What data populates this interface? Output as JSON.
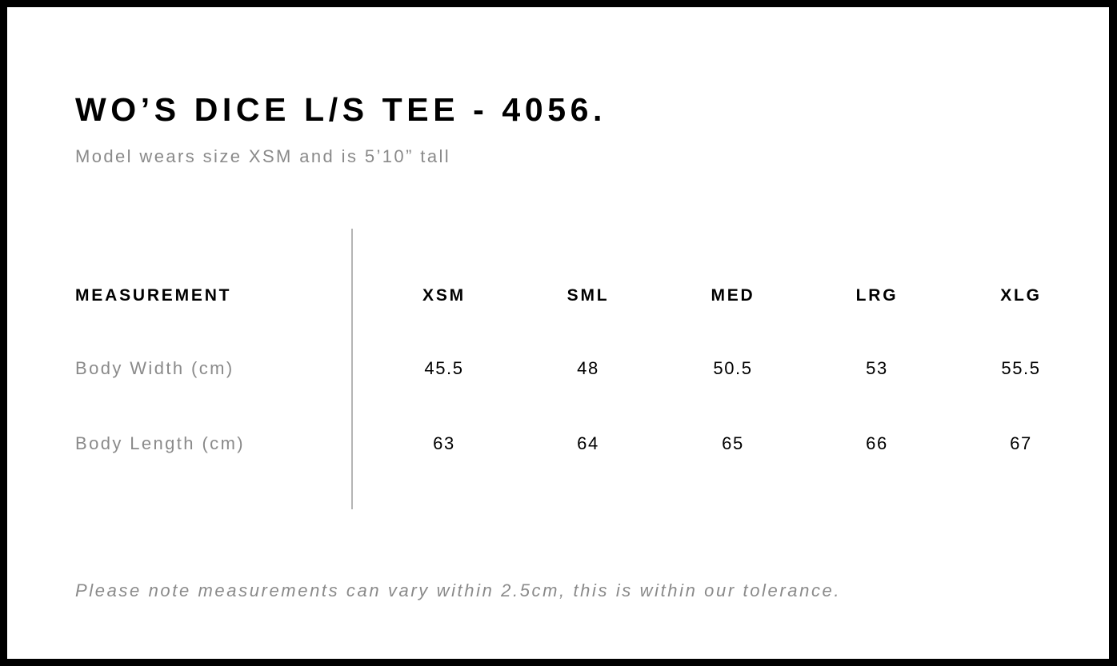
{
  "title": "WO’S DICE L/S TEE - 4056.",
  "subtitle": "Model wears size XSM and is 5’10” tall",
  "table": {
    "header": "MEASUREMENT",
    "sizes": [
      "XSM",
      "SML",
      "MED",
      "LRG",
      "XLG"
    ],
    "rows": [
      {
        "label": "Body Width (cm)",
        "values": [
          "45.5",
          "48",
          "50.5",
          "53",
          "55.5"
        ]
      },
      {
        "label": "Body Length (cm)",
        "values": [
          "63",
          "64",
          "65",
          "66",
          "67"
        ]
      }
    ]
  },
  "note": "Please note measurements can vary within 2.5cm, this is within our tolerance."
}
